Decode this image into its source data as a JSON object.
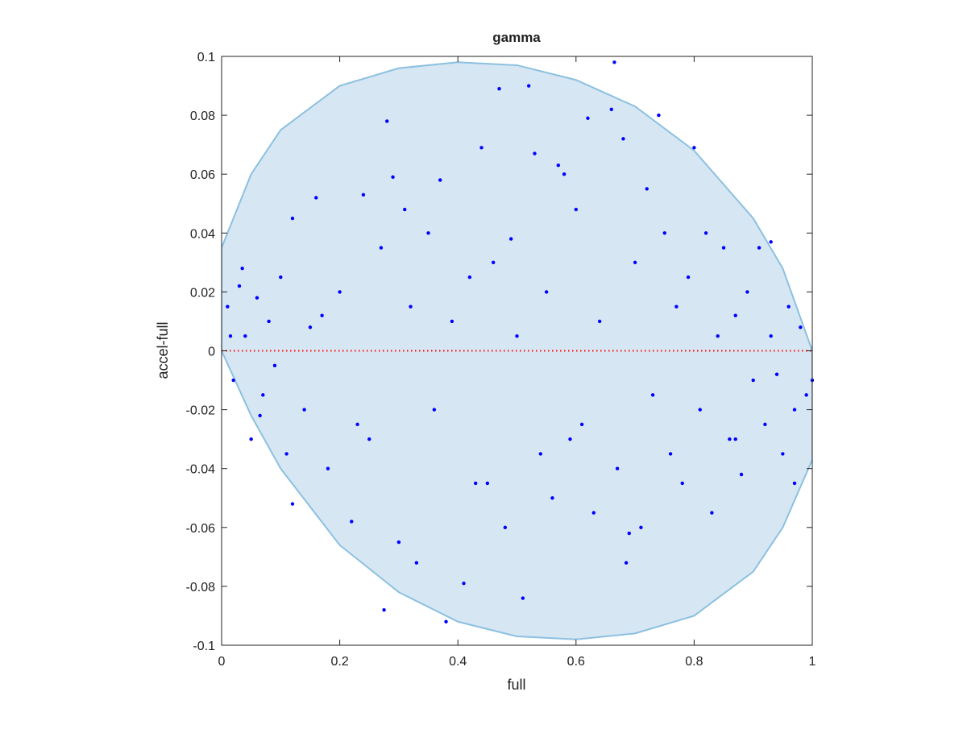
{
  "chart_data": {
    "type": "scatter",
    "title": "gamma",
    "x_label": "full",
    "y_label": "accel-full",
    "xlim": [
      0,
      1
    ],
    "ylim": [
      -0.1,
      0.1
    ],
    "xticks": [
      0,
      0.2,
      0.4,
      0.6,
      0.8,
      1
    ],
    "yticks": [
      -0.1,
      -0.08,
      -0.06,
      -0.04,
      -0.02,
      0,
      0.02,
      0.04,
      0.06,
      0.08,
      0.1
    ],
    "color": "#0000ff",
    "region": {
      "color": "#d6e7f3",
      "edge_color": "#8cc0e0",
      "x": [
        0,
        0.05,
        0.1,
        0.2,
        0.3,
        0.4,
        0.5,
        0.6,
        0.7,
        0.8,
        0.9,
        0.95,
        1,
        1,
        0.95,
        0.9,
        0.8,
        0.7,
        0.6,
        0.5,
        0.4,
        0.3,
        0.2,
        0.1,
        0.05,
        0
      ],
      "y": [
        0.035,
        0.06,
        0.075,
        0.09,
        0.096,
        0.098,
        0.097,
        0.092,
        0.083,
        0.068,
        0.045,
        0.028,
        0,
        -0.037,
        -0.06,
        -0.075,
        -0.09,
        -0.096,
        -0.098,
        -0.097,
        -0.092,
        -0.082,
        -0.066,
        -0.04,
        -0.022,
        0
      ]
    },
    "reference_line": {
      "y": 0,
      "color": "#ff0000"
    },
    "x": [
      0.665,
      0.47,
      0.52,
      0.28,
      0.74,
      0.38,
      0.275,
      0.51,
      0.685,
      0.12,
      0.01,
      0.02,
      0.03,
      0.04,
      0.05,
      0.06,
      0.07,
      0.08,
      0.09,
      0.1,
      0.12,
      0.14,
      0.15,
      0.16,
      0.18,
      0.2,
      0.22,
      0.24,
      0.25,
      0.27,
      0.29,
      0.3,
      0.32,
      0.33,
      0.35,
      0.36,
      0.37,
      0.39,
      0.41,
      0.42,
      0.44,
      0.45,
      0.46,
      0.48,
      0.49,
      0.5,
      0.53,
      0.54,
      0.55,
      0.56,
      0.58,
      0.59,
      0.6,
      0.61,
      0.62,
      0.63,
      0.64,
      0.66,
      0.67,
      0.68,
      0.7,
      0.71,
      0.72,
      0.73,
      0.75,
      0.76,
      0.77,
      0.78,
      0.79,
      0.8,
      0.81,
      0.82,
      0.83,
      0.84,
      0.85,
      0.86,
      0.87,
      0.88,
      0.89,
      0.9,
      0.91,
      0.92,
      0.93,
      0.94,
      0.95,
      0.96,
      0.97,
      0.98,
      0.99,
      1.0,
      0.015,
      0.035,
      0.065,
      0.11,
      0.17,
      0.23,
      0.31,
      0.43,
      0.57,
      0.69,
      0.87,
      0.93,
      0.97
    ],
    "y": [
      0.098,
      0.089,
      0.09,
      0.078,
      0.08,
      -0.092,
      -0.088,
      -0.084,
      -0.072,
      -0.052,
      0.015,
      -0.01,
      0.022,
      0.005,
      -0.03,
      0.018,
      -0.015,
      0.01,
      -0.005,
      0.025,
      0.045,
      -0.02,
      0.008,
      0.052,
      -0.04,
      0.02,
      -0.058,
      0.053,
      -0.03,
      0.035,
      0.059,
      -0.065,
      0.015,
      -0.072,
      0.04,
      -0.02,
      0.058,
      0.01,
      -0.079,
      0.025,
      0.069,
      -0.045,
      0.03,
      -0.06,
      0.038,
      0.005,
      0.067,
      -0.035,
      0.02,
      -0.05,
      0.06,
      -0.03,
      0.048,
      -0.025,
      0.079,
      -0.055,
      0.01,
      0.082,
      -0.04,
      0.072,
      0.03,
      -0.06,
      0.055,
      -0.015,
      0.04,
      -0.035,
      0.015,
      -0.045,
      0.025,
      0.069,
      -0.02,
      0.04,
      -0.055,
      0.005,
      0.035,
      -0.03,
      0.012,
      -0.042,
      0.02,
      -0.01,
      0.035,
      -0.025,
      0.037,
      -0.008,
      -0.035,
      0.015,
      -0.02,
      0.008,
      -0.015,
      -0.01,
      0.005,
      0.028,
      -0.022,
      -0.035,
      0.012,
      -0.025,
      0.048,
      -0.045,
      0.063,
      -0.062,
      -0.03,
      0.005,
      -0.045
    ]
  }
}
